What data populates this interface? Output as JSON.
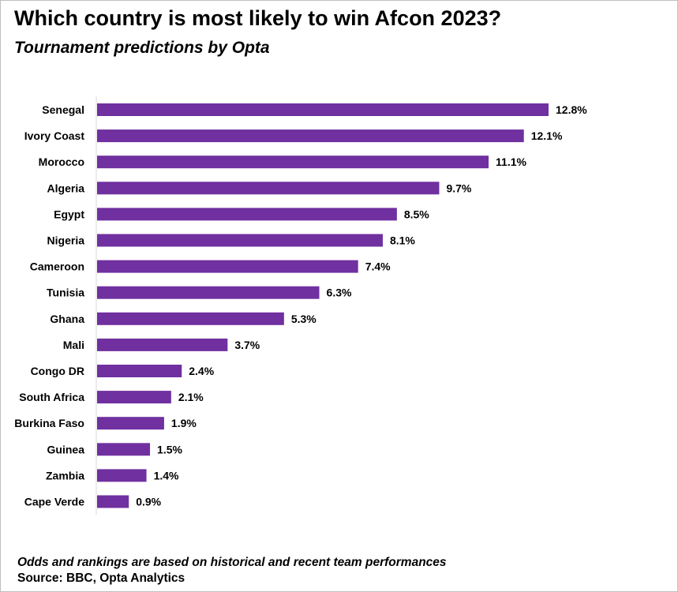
{
  "chart_data": {
    "type": "bar",
    "orientation": "horizontal",
    "title": "Which country is most likely to win Afcon 2023?",
    "subtitle": "Tournament predictions by Opta",
    "categories": [
      "Senegal",
      "Ivory Coast",
      "Morocco",
      "Algeria",
      "Egypt",
      "Nigeria",
      "Cameroon",
      "Tunisia",
      "Ghana",
      "Mali",
      "Congo DR",
      "South Africa",
      "Burkina Faso",
      "Guinea",
      "Zambia",
      "Cape Verde"
    ],
    "values": [
      12.8,
      12.1,
      11.1,
      9.7,
      8.5,
      8.1,
      7.4,
      6.3,
      5.3,
      3.7,
      2.4,
      2.1,
      1.9,
      1.5,
      1.4,
      0.9
    ],
    "value_labels": [
      "12.8%",
      "12.1%",
      "11.1%",
      "9.7%",
      "8.5%",
      "8.1%",
      "7.4%",
      "6.3%",
      "5.3%",
      "3.7%",
      "2.4%",
      "2.1%",
      "1.9%",
      "1.5%",
      "1.4%",
      "0.9%"
    ],
    "unit": "%",
    "xlim": [
      0,
      12.8
    ],
    "grid": false,
    "legend": "none",
    "bar_color": "#7030a0"
  },
  "footer": {
    "note": "Odds and rankings are based on historical and recent team performances",
    "source": "Source: BBC, Opta Analytics"
  }
}
